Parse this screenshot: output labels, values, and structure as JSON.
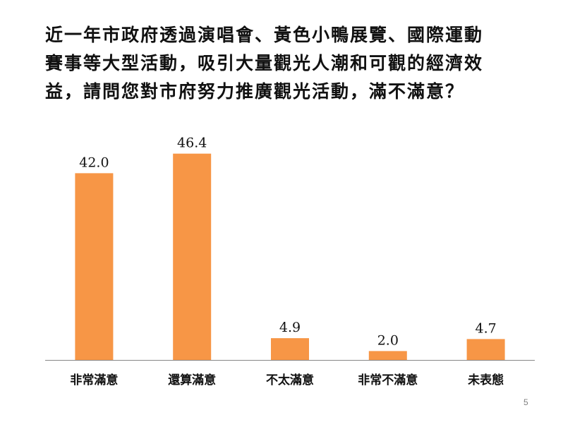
{
  "slide": {
    "title_lines": [
      "近一年市政府透過演唱會、黃色小鴨展覽、國際運動",
      "賽事等大型活動，吸引大量觀光人潮和可觀的經濟效",
      "益，請問您對市府努力推廣觀光活動，滿不滿意？"
    ],
    "page_number": "5"
  },
  "chart_data": {
    "type": "bar",
    "categories": [
      "非常滿意",
      "還算滿意",
      "不太滿意",
      "非常不滿意",
      "未表態"
    ],
    "values": [
      42.0,
      46.4,
      4.9,
      2.0,
      4.7
    ],
    "value_labels": [
      "42.0",
      "46.4",
      "4.9",
      "2.0",
      "4.7"
    ],
    "title": "",
    "xlabel": "",
    "ylabel": "",
    "ylim": [
      0,
      50
    ],
    "grid": false,
    "legend": "none",
    "bar_color": "#F79646",
    "axis_color": "#868686"
  }
}
